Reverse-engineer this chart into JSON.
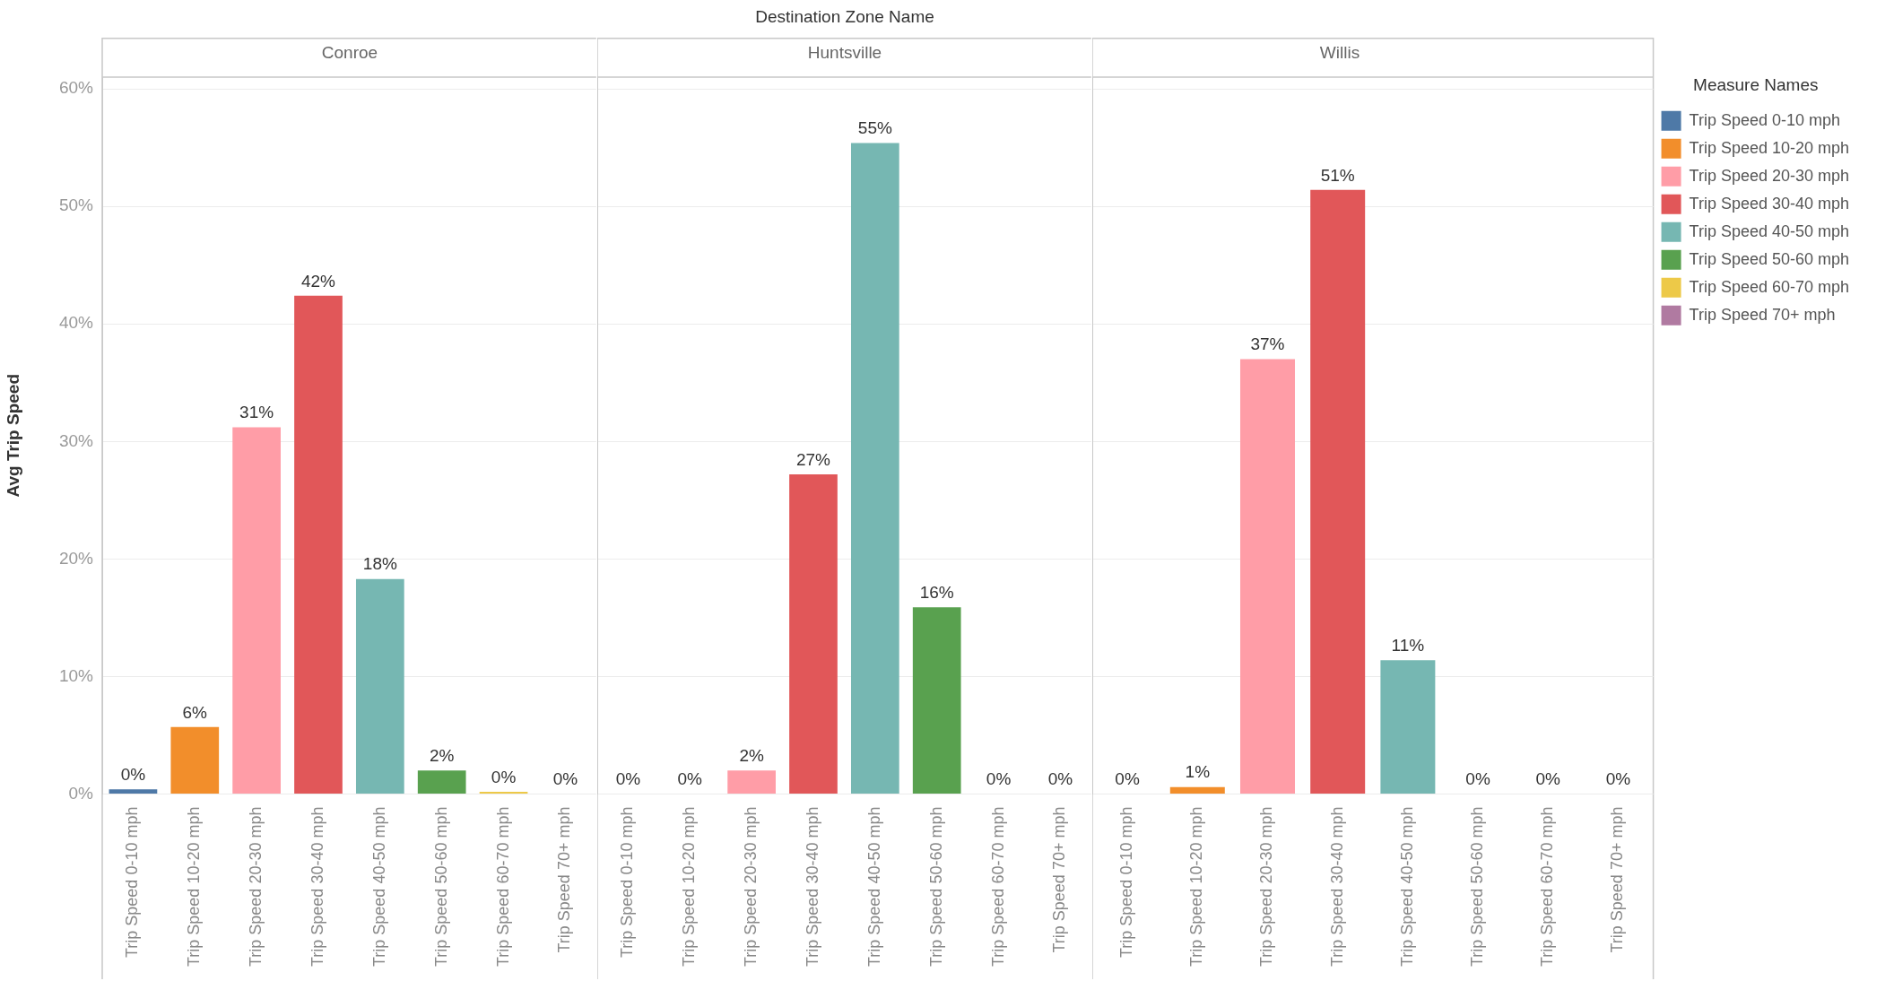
{
  "chart_data": [
    {
      "type": "bar",
      "subtitle": "Conroe",
      "ylabel": "Avg Trip Speed",
      "categories": [
        "Trip Speed 0-10 mph",
        "Trip Speed 10-20 mph",
        "Trip Speed 20-30 mph",
        "Trip Speed 30-40 mph",
        "Trip Speed 40-50 mph",
        "Trip Speed 50-60 mph",
        "Trip Speed 60-70 mph",
        "Trip Speed 70+ mph"
      ],
      "values": [
        0.4,
        5.7,
        31.2,
        42.4,
        18.3,
        2.0,
        0.2,
        0
      ],
      "value_labels": [
        "0%",
        "6%",
        "31%",
        "42%",
        "18%",
        "2%",
        "0%",
        "0%"
      ],
      "colors": [
        "#4e79a7",
        "#f28e2b",
        "#ff9da7",
        "#e15759",
        "#76b7b2",
        "#59a14f",
        "#edc948",
        "#b07aa1"
      ],
      "ylim": [
        0,
        61
      ],
      "yticks": [
        {
          "value": 0,
          "label": "0%"
        },
        {
          "value": 10,
          "label": "10%"
        },
        {
          "value": 20,
          "label": "20%"
        },
        {
          "value": 30,
          "label": "30%"
        },
        {
          "value": 40,
          "label": "40%"
        },
        {
          "value": 50,
          "label": "50%"
        },
        {
          "value": 60,
          "label": "60%"
        }
      ],
      "grid": "y"
    },
    {
      "type": "bar",
      "title": "Destination Zone Name",
      "subtitle": "Huntsville",
      "categories": [
        "Trip Speed 0-10 mph",
        "Trip Speed 10-20 mph",
        "Trip Speed 20-30 mph",
        "Trip Speed 30-40 mph",
        "Trip Speed 40-50 mph",
        "Trip Speed 50-60 mph",
        "Trip Speed 60-70 mph",
        "Trip Speed 70+ mph"
      ],
      "values": [
        0,
        0,
        2.0,
        27.2,
        55.4,
        15.9,
        0,
        0
      ],
      "value_labels": [
        "0%",
        "0%",
        "2%",
        "27%",
        "55%",
        "16%",
        "0%",
        "0%"
      ],
      "colors": [
        "#4e79a7",
        "#f28e2b",
        "#ff9da7",
        "#e15759",
        "#76b7b2",
        "#59a14f",
        "#edc948",
        "#b07aa1"
      ],
      "ylim": [
        0,
        61
      ],
      "yticks": [
        0,
        10,
        20,
        30,
        40,
        50,
        60
      ],
      "grid": "y",
      "tick_labels": "x"
    },
    {
      "type": "bar",
      "subtitle": "Willis",
      "categories": [
        "Trip Speed 0-10 mph",
        "Trip Speed 10-20 mph",
        "Trip Speed 20-30 mph",
        "Trip Speed 30-40 mph",
        "Trip Speed 40-50 mph",
        "Trip Speed 50-60 mph",
        "Trip Speed 60-70 mph",
        "Trip Speed 70+ mph"
      ],
      "series": [
        {
          "name": "Trip Speed 0-10 mph",
          "color": "#4e79a7",
          "values": [
            0,
            null,
            null,
            null,
            null,
            null,
            null,
            null
          ],
          "value_labels": [
            "0%",
            null,
            null,
            null,
            null,
            null,
            null,
            null
          ]
        },
        {
          "name": "Trip Speed 10-20 mph",
          "color": "#f28e2b",
          "values": [
            null,
            0.6,
            null,
            null,
            null,
            null,
            null,
            null
          ],
          "value_labels": [
            null,
            "1%",
            null,
            null,
            null,
            null,
            null,
            null
          ]
        },
        {
          "name": "Trip Speed 20-30 mph",
          "color": "#ff9da7",
          "values": [
            null,
            null,
            37.0,
            null,
            null,
            null,
            null,
            null
          ],
          "value_labels": [
            null,
            null,
            "37%",
            null,
            null,
            null,
            null,
            null
          ]
        },
        {
          "name": "Trip Speed 30-40 mph",
          "color": "#e15759",
          "values": [
            null,
            null,
            null,
            51.4,
            null,
            null,
            null,
            null
          ],
          "value_labels": [
            null,
            null,
            null,
            "51%",
            null,
            null,
            null,
            null
          ]
        },
        {
          "name": "Trip Speed 40-50 mph",
          "color": "#76b7b2",
          "values": [
            null,
            null,
            null,
            null,
            11.4,
            null,
            null,
            null
          ],
          "value_labels": [
            null,
            null,
            null,
            null,
            "11%",
            null,
            null,
            null
          ]
        },
        {
          "name": "Trip Speed 50-60 mph",
          "color": "#59a14f",
          "values": [
            null,
            null,
            null,
            null,
            null,
            0,
            null,
            null
          ],
          "value_labels": [
            null,
            null,
            null,
            null,
            null,
            "0%",
            null,
            null
          ]
        },
        {
          "name": "Trip Speed 60-70 mph",
          "color": "#edc948",
          "values": [
            null,
            null,
            null,
            null,
            null,
            null,
            0,
            null
          ],
          "value_labels": [
            null,
            null,
            null,
            null,
            null,
            null,
            "0%",
            null
          ]
        },
        {
          "name": "Trip Speed 70+ mph",
          "color": "#b07aa1",
          "values": [
            null,
            null,
            null,
            null,
            null,
            null,
            null,
            0
          ],
          "value_labels": [
            null,
            null,
            null,
            null,
            null,
            null,
            null,
            "0%"
          ]
        }
      ],
      "ylim": [
        0,
        61
      ],
      "yticks": [
        0,
        10,
        20,
        30,
        40,
        50,
        60
      ],
      "grid": "y",
      "tick_labels": "x",
      "legend": "right",
      "legend_title": "Measure Names"
    }
  ]
}
